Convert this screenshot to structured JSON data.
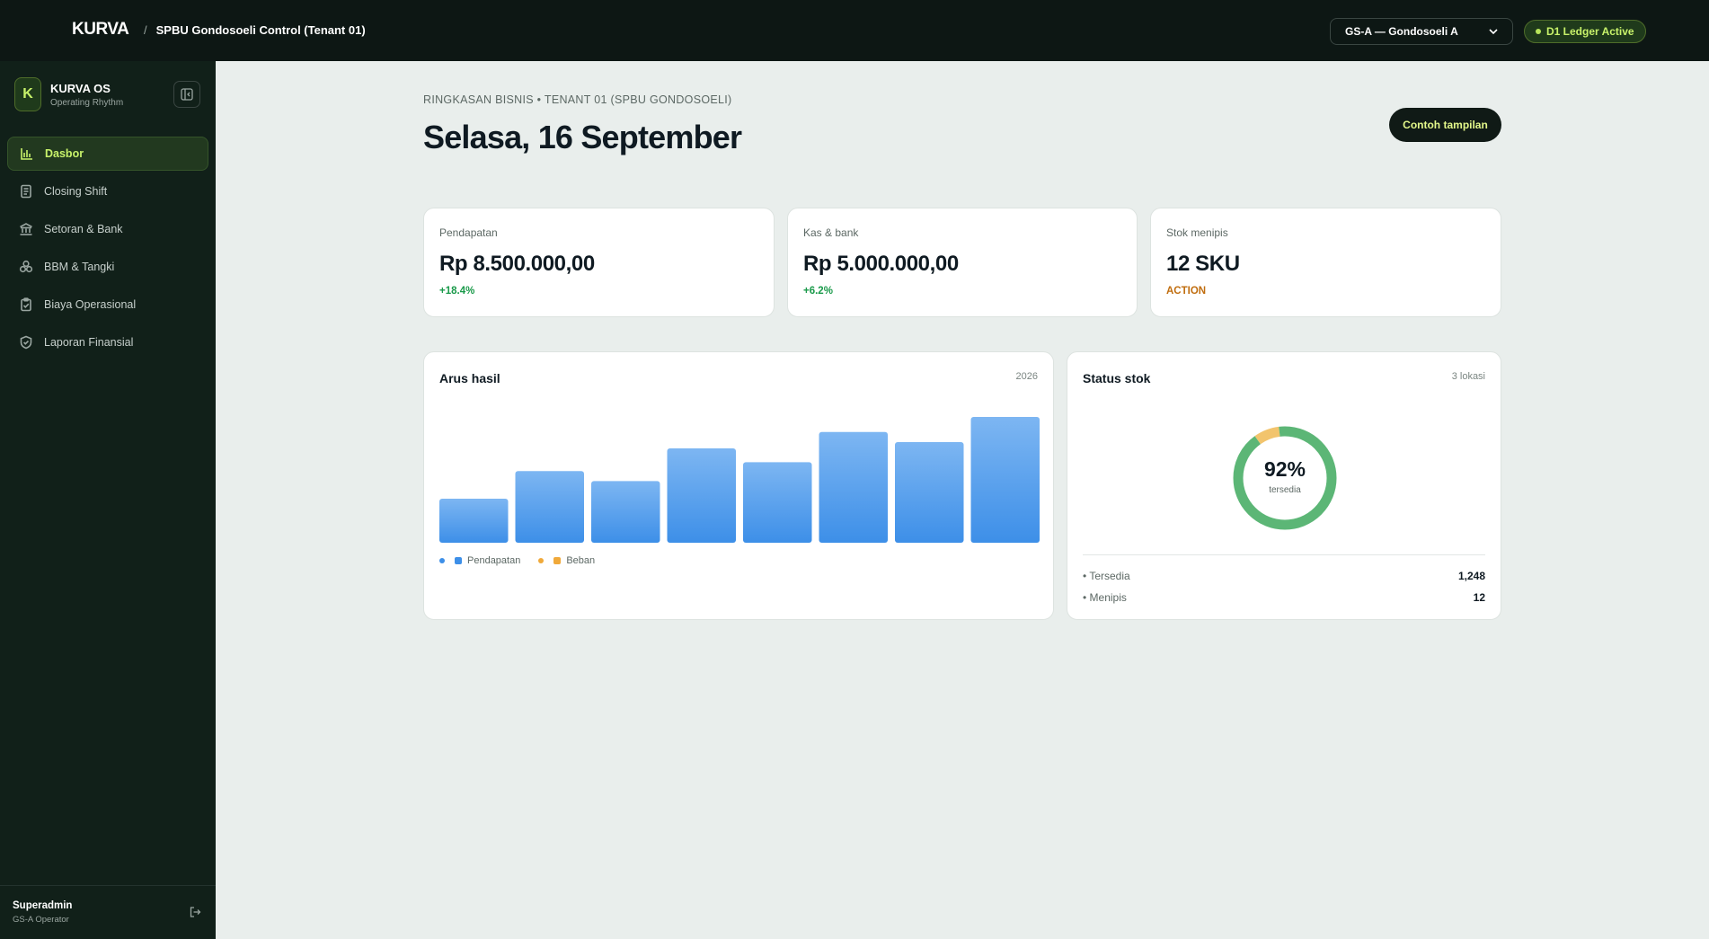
{
  "topbar": {
    "brand": "KURVA",
    "separator": "/",
    "context": "SPBU Gondosoeli Control (Tenant 01)",
    "tenant_select": "GS-A — Gondosoeli A",
    "ledger_status": "D1 Ledger Active"
  },
  "sidebar": {
    "workspace_initial": "K",
    "workspace_name": "KURVA OS",
    "workspace_sub": "Operating Rhythm",
    "items": [
      {
        "label": "Dasbor",
        "icon": "bar-chart-icon",
        "active": true
      },
      {
        "label": "Closing Shift",
        "icon": "document-icon",
        "active": false
      },
      {
        "label": "Setoran & Bank",
        "icon": "bank-icon",
        "active": false
      },
      {
        "label": "BBM & Tangki",
        "icon": "barrels-icon",
        "active": false
      },
      {
        "label": "Biaya Operasional",
        "icon": "clipboard-check-icon",
        "active": false
      },
      {
        "label": "Laporan Finansial",
        "icon": "shield-check-icon",
        "active": false
      }
    ],
    "user_name": "Superadmin",
    "user_role": "GS-A Operator"
  },
  "main": {
    "eyebrow": "RINGKASAN BISNIS • TENANT 01 (SPBU GONDOSOELI)",
    "title": "Selasa, 16 September",
    "sample_button": "Contoh tampilan",
    "kpis": [
      {
        "label": "Pendapatan",
        "value": "Rp 8.500.000,00",
        "delta": "+18.4%",
        "tone": "up"
      },
      {
        "label": "Kas & bank",
        "value": "Rp 5.000.000,00",
        "delta": "+6.2%",
        "tone": "up"
      },
      {
        "label": "Stok menipis",
        "value": "12 SKU",
        "delta": "ACTION",
        "tone": "warn"
      }
    ],
    "cashflow": {
      "title": "Arus hasil",
      "year": "2026",
      "legend": [
        "Pendapatan",
        "Beban"
      ]
    },
    "stock": {
      "title": "Status stok",
      "meta": "3 lokasi",
      "percent_label": "92%",
      "percent_sub": "tersedia",
      "rows": [
        {
          "label": "• Tersedia",
          "value": "1,248"
        },
        {
          "label": "• Menipis",
          "value": "12"
        }
      ]
    }
  },
  "colors": {
    "bar_top": "#7db6f2",
    "bar_bottom": "#3d8fe8",
    "donut_available": "#5cb676",
    "donut_low": "#f2c46d",
    "legend_income": "#3d8fe8",
    "legend_expense": "#f0a93a"
  },
  "chart_data": [
    {
      "type": "bar",
      "title": "Arus hasil",
      "series": [
        {
          "name": "Pendapatan",
          "values": [
            35,
            57,
            49,
            75,
            64,
            88,
            80,
            100
          ]
        }
      ],
      "ylim": [
        0,
        100
      ],
      "grid": false,
      "legend": "bottom-left"
    },
    {
      "type": "pie",
      "title": "Status stok",
      "slices": [
        {
          "name": "Tersedia",
          "value": 92
        },
        {
          "name": "Menipis",
          "value": 8
        }
      ]
    }
  ]
}
